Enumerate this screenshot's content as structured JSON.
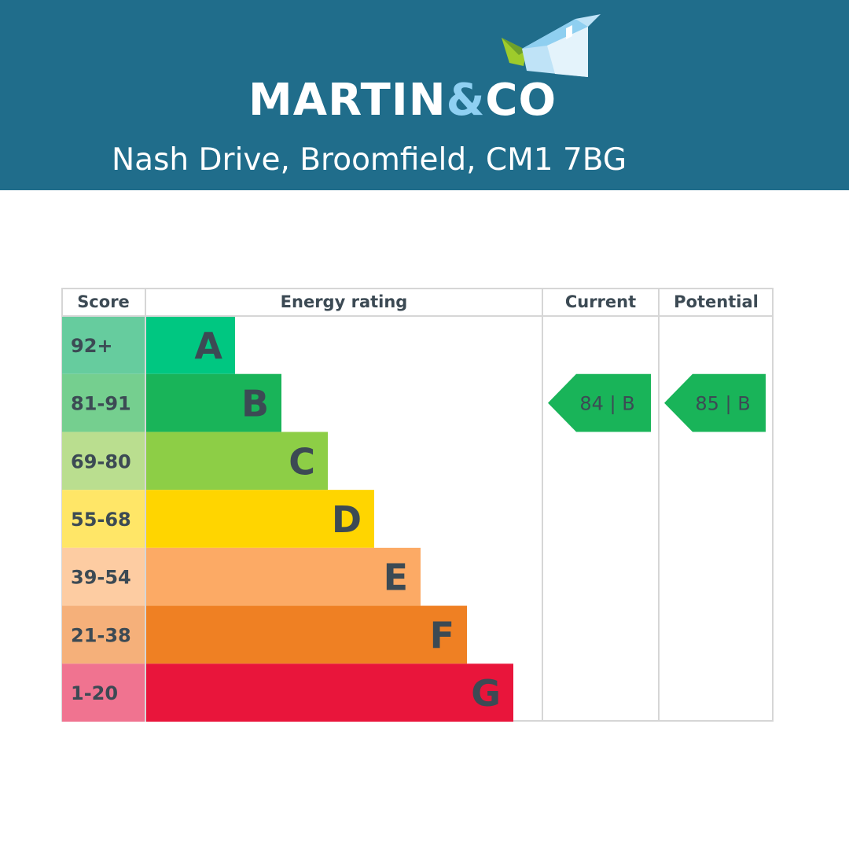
{
  "brand": {
    "name_part1": "MARTIN",
    "name_amp": "&",
    "name_part2": "CO",
    "icon": "house-roof-icon",
    "header_color": "#206d8b",
    "amp_color": "#8fd0f2"
  },
  "address": "Nash Drive, Broomfield, CM1 7BG",
  "chart_data": {
    "type": "table",
    "columns": [
      "Score",
      "Energy rating",
      "Current",
      "Potential"
    ],
    "bands": [
      {
        "score": "92+",
        "letter": "A",
        "color": "#00c781",
        "score_color": "#66cc9e"
      },
      {
        "score": "81-91",
        "letter": "B",
        "color": "#19b459",
        "score_color": "#75cf8f"
      },
      {
        "score": "69-80",
        "letter": "C",
        "color": "#8dce46",
        "score_color": "#bade8f"
      },
      {
        "score": "55-68",
        "letter": "D",
        "color": "#ffd500",
        "score_color": "#ffe667"
      },
      {
        "score": "39-54",
        "letter": "E",
        "color": "#fcaa65",
        "score_color": "#fdcca2"
      },
      {
        "score": "21-38",
        "letter": "F",
        "color": "#ef8023",
        "score_color": "#f5b07a"
      },
      {
        "score": "1-20",
        "letter": "G",
        "color": "#e9153b",
        "score_color": "#f07390"
      }
    ],
    "current": {
      "value": 84,
      "band": "B",
      "label": "84 | B",
      "color": "#19b459"
    },
    "potential": {
      "value": 85,
      "band": "B",
      "label": "85 | B",
      "color": "#19b459"
    }
  }
}
